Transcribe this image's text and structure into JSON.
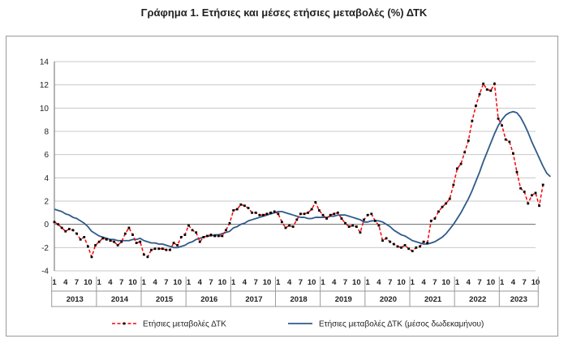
{
  "title": "Γράφημα 1. Ετήσιες και μέσες ετήσιες μεταβολές (%) ΔΤΚ",
  "chart_data": {
    "type": "line",
    "title": "Γράφημα 1. Ετήσιες και μέσες ετήσιες μεταβολές (%) ΔΤΚ",
    "xlabel": "",
    "ylabel": "",
    "ylim": [
      -4,
      14
    ],
    "yticks": [
      "14",
      "12",
      "10",
      "8",
      "6",
      "4",
      "2",
      "0",
      "-2",
      "-4"
    ],
    "grid": "horizontal",
    "legend": "bottom",
    "month_tick_labels": [
      "1",
      "4",
      "7",
      "10"
    ],
    "years": [
      "2013",
      "2014",
      "2015",
      "2016",
      "2017",
      "2018",
      "2019",
      "2020",
      "2021",
      "2022",
      "2023"
    ],
    "months_in_last_year": 10,
    "series": [
      {
        "name": "Ετήσιες μεταβολές ΔΤΚ",
        "color": "#ff0000",
        "style": "dashed-with-markers",
        "values": [
          0.2,
          0.0,
          -0.3,
          -0.6,
          -0.4,
          -0.5,
          -0.8,
          -1.3,
          -1.1,
          -1.9,
          -2.8,
          -1.8,
          -1.5,
          -1.2,
          -1.3,
          -1.4,
          -1.5,
          -1.8,
          -1.5,
          -0.8,
          -0.3,
          -0.9,
          -1.6,
          -1.5,
          -2.6,
          -2.8,
          -2.2,
          -2.1,
          -2.1,
          -2.1,
          -2.2,
          -2.2,
          -1.6,
          -1.8,
          -1.1,
          -0.9,
          -0.1,
          -0.5,
          -0.7,
          -1.5,
          -1.1,
          -1.0,
          -0.9,
          -1.0,
          -1.0,
          -1.0,
          -0.5,
          0.1,
          1.2,
          1.3,
          1.7,
          1.6,
          1.4,
          1.0,
          1.0,
          0.8,
          0.8,
          0.9,
          1.0,
          1.1,
          0.9,
          0.2,
          -0.3,
          -0.1,
          -0.2,
          0.4,
          0.9,
          0.9,
          1.0,
          1.3,
          1.9,
          1.2,
          0.8,
          0.5,
          0.8,
          0.9,
          1.0,
          0.5,
          0.1,
          -0.2,
          -0.1,
          -0.2,
          -0.7,
          0.4,
          0.8,
          0.9,
          0.3,
          -0.1,
          -1.4,
          -1.2,
          -1.5,
          -1.7,
          -1.9,
          -2.0,
          -1.8,
          -2.1,
          -2.3,
          -2.0,
          -1.9,
          -1.5,
          -1.6,
          0.3,
          0.5,
          1.1,
          1.5,
          1.8,
          2.2,
          3.4,
          4.8,
          5.2,
          6.2,
          7.2,
          8.9,
          10.2,
          11.2,
          12.1,
          11.6,
          11.5,
          12.1,
          9.1,
          8.5,
          7.3,
          7.1,
          6.1,
          4.5,
          3.1,
          2.8,
          1.8,
          2.5,
          2.7,
          1.6,
          3.4
        ]
      },
      {
        "name": "Ετήσιες μεταβολές ΔΤΚ (μέσος δωδεκαμήνου)",
        "color": "#2f5a8a",
        "style": "solid",
        "values": [
          1.3,
          1.2,
          1.1,
          0.9,
          0.8,
          0.6,
          0.5,
          0.3,
          0.1,
          -0.2,
          -0.6,
          -0.8,
          -1.0,
          -1.1,
          -1.2,
          -1.3,
          -1.3,
          -1.4,
          -1.4,
          -1.4,
          -1.4,
          -1.3,
          -1.3,
          -1.2,
          -1.4,
          -1.5,
          -1.6,
          -1.6,
          -1.7,
          -1.7,
          -1.8,
          -1.9,
          -2.0,
          -2.0,
          -1.9,
          -1.8,
          -1.6,
          -1.5,
          -1.3,
          -1.2,
          -1.1,
          -1.0,
          -1.0,
          -0.9,
          -0.9,
          -0.8,
          -0.7,
          -0.6,
          -0.3,
          -0.2,
          0.0,
          0.1,
          0.3,
          0.4,
          0.5,
          0.6,
          0.7,
          0.8,
          0.9,
          1.0,
          1.1,
          1.1,
          1.0,
          0.9,
          0.8,
          0.7,
          0.6,
          0.6,
          0.5,
          0.5,
          0.6,
          0.6,
          0.6,
          0.6,
          0.7,
          0.7,
          0.8,
          0.8,
          0.8,
          0.7,
          0.6,
          0.5,
          0.4,
          0.2,
          0.2,
          0.3,
          0.3,
          0.3,
          0.2,
          0.0,
          -0.2,
          -0.5,
          -0.7,
          -0.9,
          -1.0,
          -1.2,
          -1.4,
          -1.5,
          -1.6,
          -1.7,
          -1.7,
          -1.6,
          -1.5,
          -1.3,
          -1.1,
          -0.8,
          -0.4,
          0.0,
          0.5,
          1.0,
          1.6,
          2.2,
          2.9,
          3.7,
          4.5,
          5.4,
          6.2,
          7.0,
          7.8,
          8.5,
          9.0,
          9.4,
          9.6,
          9.7,
          9.6,
          9.2,
          8.6,
          7.9,
          7.1,
          6.4,
          5.7,
          5.0,
          4.4,
          4.1
        ]
      }
    ]
  }
}
